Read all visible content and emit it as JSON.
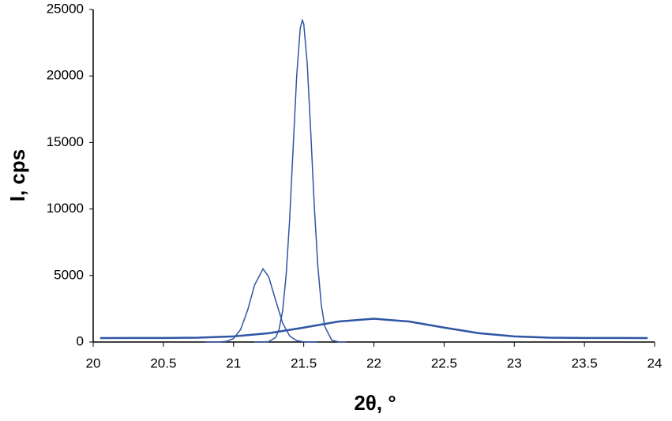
{
  "chart_data": {
    "type": "line",
    "x_label": "2θ, °",
    "y_label": "I, cps",
    "xlim": [
      20,
      24
    ],
    "xticks": [
      20,
      20.5,
      21,
      21.5,
      22,
      22.5,
      23,
      23.5,
      24
    ],
    "ylim": [
      0,
      25000
    ],
    "yticks": [
      0,
      5000,
      10000,
      15000,
      20000,
      25000
    ],
    "grid": false,
    "series": [
      {
        "color": "#2f55a4",
        "width": 1.5,
        "x": [
          21.15,
          21.2,
          21.25,
          21.3,
          21.325,
          21.35,
          21.375,
          21.4,
          21.425,
          21.45,
          21.475,
          21.49,
          21.5,
          21.525,
          21.55,
          21.575,
          21.6,
          21.625,
          21.65,
          21.7,
          21.75,
          21.8
        ],
        "values": [
          0,
          1,
          26,
          339,
          968,
          2380,
          5060,
          9270,
          14680,
          20020,
          23560,
          24200,
          23920,
          20940,
          15800,
          10290,
          5780,
          2800,
          1170,
          130,
          8,
          0
        ]
      },
      {
        "color": "#2f55a4",
        "width": 1.5,
        "x": [
          20.8,
          20.9,
          20.95,
          21.0,
          21.05,
          21.1,
          21.15,
          21.21,
          21.25,
          21.3,
          21.35,
          21.4,
          21.45,
          21.5,
          21.6
        ],
        "values": [
          0,
          7,
          51,
          260,
          935,
          2380,
          4290,
          5500,
          4920,
          3140,
          1420,
          451,
          102,
          16,
          0
        ]
      },
      {
        "color": "#2f55a4",
        "width": 2.5,
        "x": [
          20.05,
          20.25,
          20.5,
          20.75,
          21,
          21.25,
          21.5,
          21.75,
          22,
          22.25,
          22.5,
          22.75,
          23,
          23.25,
          23.5,
          23.75,
          23.95
        ],
        "values": [
          300,
          301,
          306,
          330,
          423,
          661,
          1082,
          1543,
          1750,
          1543,
          1082,
          661,
          423,
          330,
          306,
          301,
          300
        ]
      }
    ]
  }
}
